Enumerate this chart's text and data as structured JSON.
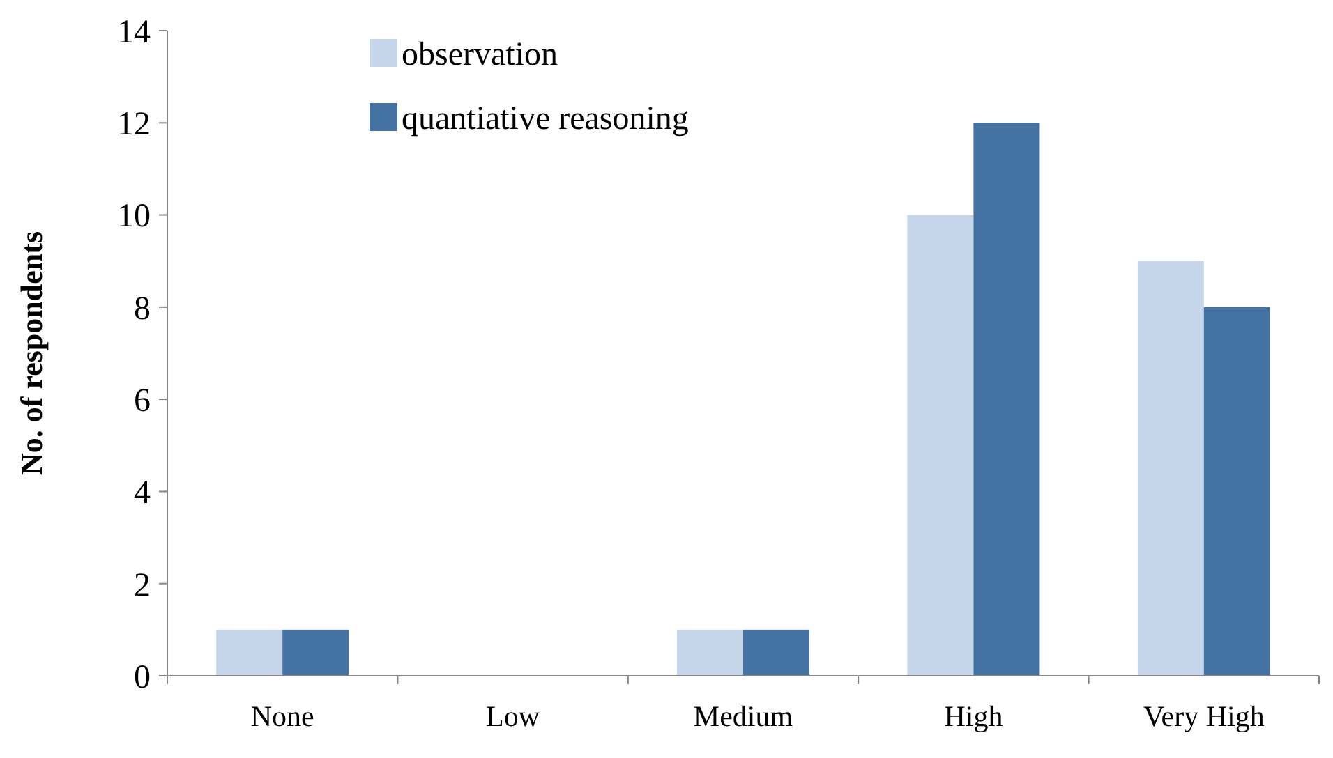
{
  "chart_data": {
    "type": "bar",
    "ylabel": "No. of respondents",
    "categories": [
      "None",
      "Low",
      "Medium",
      "High",
      "Very High"
    ],
    "series": [
      {
        "name": "observation",
        "color": "#c5d6eb",
        "values": [
          1,
          0,
          1,
          10,
          9
        ]
      },
      {
        "name": "quantiative reasoning",
        "color": "#4472a2",
        "values": [
          1,
          0,
          1,
          12,
          8
        ]
      }
    ],
    "ylim": [
      0,
      14
    ],
    "yticks": [
      0,
      2,
      4,
      6,
      8,
      10,
      12,
      14
    ],
    "grid": false,
    "legend": "top"
  }
}
